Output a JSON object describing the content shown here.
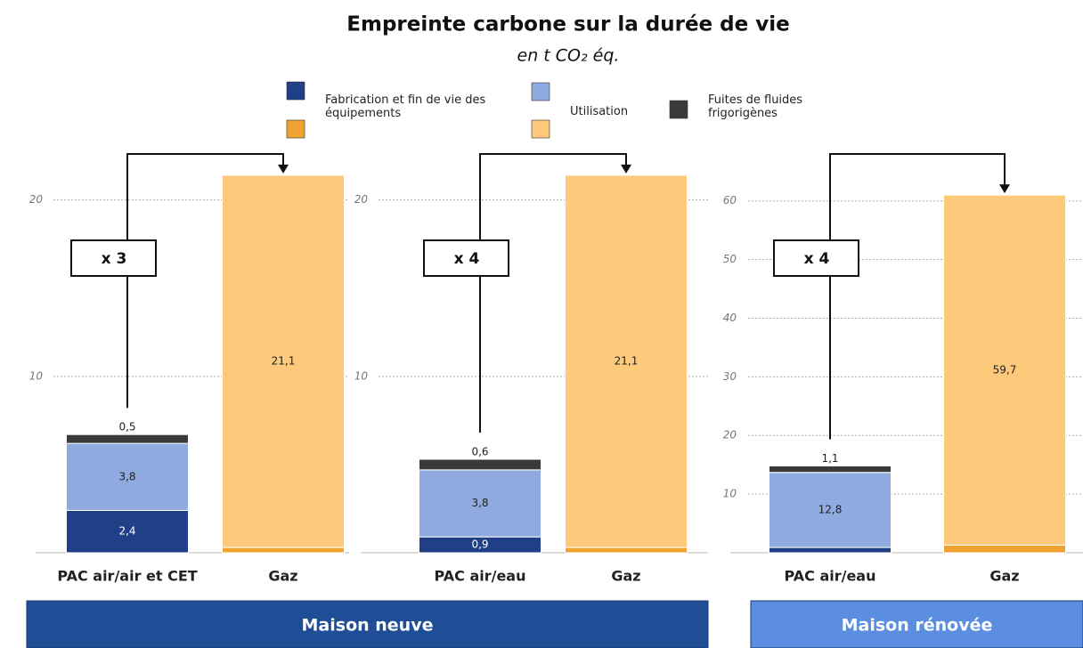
{
  "header": {
    "title": "Empreinte carbone sur la durée de vie",
    "subtitle": "en t CO₂ éq."
  },
  "footer": [
    "Maison neuve",
    "Maison rénovée"
  ],
  "chart_data": [
    {
      "type": "stacked-bar",
      "categories": [
        "PAC air/air et CET",
        "Gaz"
      ],
      "ylim": [
        0,
        22
      ],
      "yticks": [
        10,
        20
      ],
      "grid": true,
      "annotation": "x 3",
      "series": [
        {
          "name": "Fabrication et fin de vie des équipements",
          "colors": [
            "#1f3f86",
            "#f0a330"
          ],
          "values": [
            2.4,
            0.3
          ],
          "value_labels": [
            "2,4",
            "0,3"
          ]
        },
        {
          "name": "Utilisation",
          "colors": [
            "#8eaadf",
            "#fdc97b"
          ],
          "values": [
            3.8,
            21.1
          ],
          "value_labels": [
            "3,8",
            "21,1"
          ]
        },
        {
          "name": "Fuites de fluides frigorigènes",
          "colors": [
            "#3a3a3a",
            "#3a3a3a"
          ],
          "values": [
            0.5,
            null
          ],
          "value_labels": [
            "0,5",
            null
          ]
        }
      ]
    },
    {
      "type": "stacked-bar",
      "categories": [
        "PAC air/eau",
        "Gaz"
      ],
      "ylim": [
        0,
        22
      ],
      "yticks": [
        10,
        20
      ],
      "grid": true,
      "annotation": "x 4",
      "series": [
        {
          "name": "Fabrication et fin de vie des équipements",
          "colors": [
            "#1f3f86",
            "#f0a330"
          ],
          "values": [
            0.9,
            0.3
          ],
          "value_labels": [
            "0,9",
            "0,3"
          ]
        },
        {
          "name": "Utilisation",
          "colors": [
            "#8eaadf",
            "#fdc97b"
          ],
          "values": [
            3.8,
            21.1
          ],
          "value_labels": [
            "3,8",
            "21,1"
          ]
        },
        {
          "name": "Fuites de fluides frigorigènes",
          "colors": [
            "#3a3a3a",
            "#3a3a3a"
          ],
          "values": [
            0.6,
            null
          ],
          "value_labels": [
            "0,6",
            null
          ]
        }
      ]
    },
    {
      "type": "stacked-bar",
      "categories": [
        "PAC air/eau",
        "Gaz"
      ],
      "ylim": [
        0,
        68
      ],
      "yticks": [
        10,
        20,
        30,
        40,
        50,
        60
      ],
      "grid": true,
      "annotation": "x 4",
      "series": [
        {
          "name": "Fabrication et fin de vie des équipements",
          "colors": [
            "#1f3f86",
            "#f0a330"
          ],
          "values": [
            0.9,
            1.3
          ],
          "value_labels": [
            "0,9",
            "1,3"
          ]
        },
        {
          "name": "Utilisation",
          "colors": [
            "#8eaadf",
            "#fdc97b"
          ],
          "values": [
            12.8,
            59.7
          ],
          "value_labels": [
            "12,8",
            "59,7"
          ]
        },
        {
          "name": "Fuites de fluides frigorigènes",
          "colors": [
            "#3a3a3a",
            "#3a3a3a"
          ],
          "values": [
            1.1,
            null
          ],
          "value_labels": [
            "1,1",
            null
          ]
        }
      ]
    }
  ]
}
